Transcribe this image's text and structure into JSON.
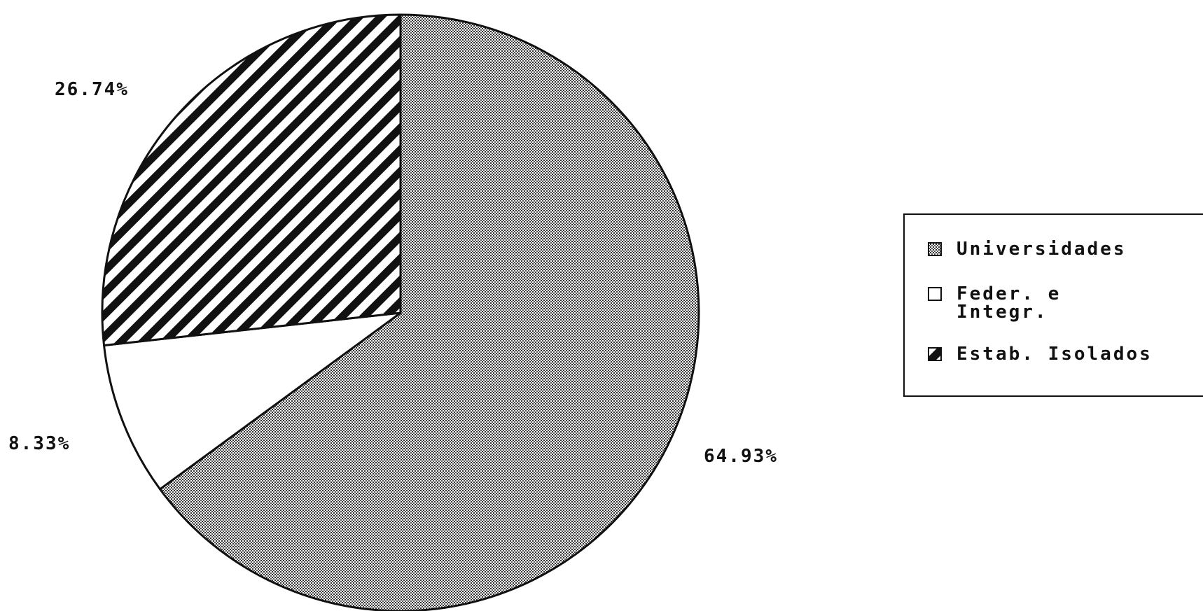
{
  "chart_data": {
    "type": "pie",
    "slices": [
      {
        "label": "Universidades",
        "value": 64.93,
        "value_label": "64.93%",
        "pattern": "dots"
      },
      {
        "label": "Feder. e Integr.",
        "legend_lines": [
          "Feder. e",
          "Integr."
        ],
        "value": 8.33,
        "value_label": "8.33%",
        "pattern": "blank"
      },
      {
        "label": "Estab. Isolados",
        "value": 26.74,
        "value_label": "26.74%",
        "pattern": "diagonal-stripes"
      }
    ],
    "start": "top",
    "direction": "clockwise",
    "legend_position": "right",
    "colors": {
      "ink": "#111111",
      "background": "#ffffff"
    }
  }
}
